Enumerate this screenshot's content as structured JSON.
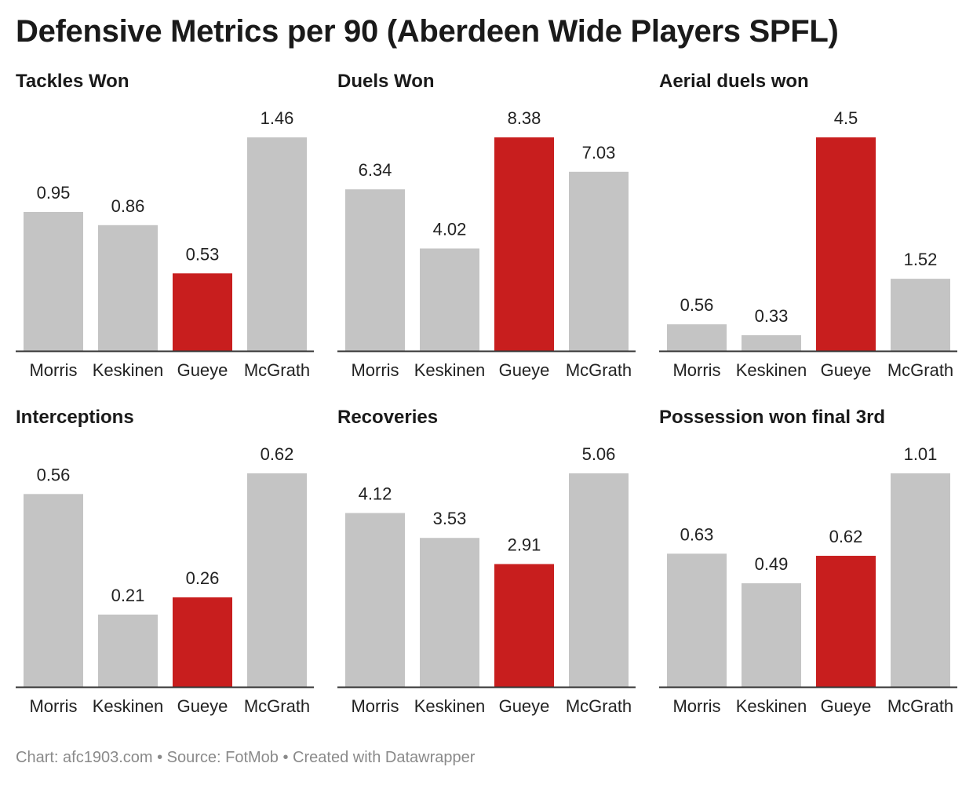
{
  "title": "Defensive Metrics per 90 (Aberdeen Wide Players SPFL)",
  "footer": "Chart: afc1903.com • Source: FotMob • Created with Datawrapper",
  "colors": {
    "highlight": "#c81e1e",
    "default": "#c4c4c4",
    "axis": "#333333"
  },
  "highlight_player": "Gueye",
  "chart_data": [
    {
      "type": "bar",
      "title": "Tackles Won",
      "categories": [
        "Morris",
        "Keskinen",
        "Gueye",
        "McGrath"
      ],
      "values": [
        0.95,
        0.86,
        0.53,
        1.46
      ]
    },
    {
      "type": "bar",
      "title": "Duels Won",
      "categories": [
        "Morris",
        "Keskinen",
        "Gueye",
        "McGrath"
      ],
      "values": [
        6.34,
        4.02,
        8.38,
        7.03
      ]
    },
    {
      "type": "bar",
      "title": "Aerial duels won",
      "categories": [
        "Morris",
        "Keskinen",
        "Gueye",
        "McGrath"
      ],
      "values": [
        0.56,
        0.33,
        4.5,
        1.52
      ]
    },
    {
      "type": "bar",
      "title": "Interceptions",
      "categories": [
        "Morris",
        "Keskinen",
        "Gueye",
        "McGrath"
      ],
      "values": [
        0.56,
        0.21,
        0.26,
        0.62
      ]
    },
    {
      "type": "bar",
      "title": "Recoveries",
      "categories": [
        "Morris",
        "Keskinen",
        "Gueye",
        "McGrath"
      ],
      "values": [
        4.12,
        3.53,
        2.91,
        5.06
      ]
    },
    {
      "type": "bar",
      "title": "Possession won final 3rd",
      "categories": [
        "Morris",
        "Keskinen",
        "Gueye",
        "McGrath"
      ],
      "values": [
        0.63,
        0.49,
        0.62,
        1.01
      ]
    }
  ]
}
